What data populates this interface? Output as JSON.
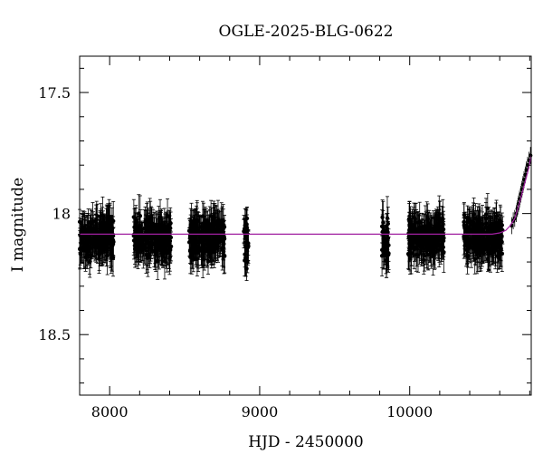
{
  "chart_data": {
    "type": "scatter",
    "title": "OGLE-2025-BLG-0622",
    "xlabel": "HJD - 2450000",
    "ylabel": "I magnitude",
    "xlim": [
      7800,
      10810
    ],
    "ylim": [
      18.75,
      17.35
    ],
    "y_axis_inverted": true,
    "x_ticks": [
      8000,
      9000,
      10000
    ],
    "x_tick_labels": [
      "8000",
      "9000",
      "10000"
    ],
    "y_ticks": [
      17.5,
      18,
      18.5
    ],
    "y_tick_labels": [
      "17.5",
      "18",
      "18.5"
    ],
    "grid": false,
    "legend": null,
    "observing_seasons": [
      {
        "x_start": 7800,
        "x_end": 8030,
        "mean_mag": 18.1,
        "scatter": 0.04,
        "error": 0.065
      },
      {
        "x_start": 8160,
        "x_end": 8410,
        "mean_mag": 18.1,
        "scatter": 0.04,
        "error": 0.065
      },
      {
        "x_start": 8530,
        "x_end": 8770,
        "mean_mag": 18.1,
        "scatter": 0.04,
        "error": 0.065
      },
      {
        "x_start": 8895,
        "x_end": 8925,
        "mean_mag": 18.11,
        "scatter": 0.04,
        "error": 0.06
      },
      {
        "x_start": 9815,
        "x_end": 9860,
        "mean_mag": 18.12,
        "scatter": 0.05,
        "error": 0.07
      },
      {
        "x_start": 9990,
        "x_end": 10230,
        "mean_mag": 18.1,
        "scatter": 0.04,
        "error": 0.065
      },
      {
        "x_start": 10360,
        "x_end": 10620,
        "mean_mag": 18.1,
        "scatter": 0.04,
        "error": 0.065
      }
    ],
    "rising_points": [
      {
        "x": 10680,
        "y": 18.05
      },
      {
        "x": 10690,
        "y": 18.03
      },
      {
        "x": 10700,
        "y": 18.02
      },
      {
        "x": 10710,
        "y": 18.0
      },
      {
        "x": 10718,
        "y": 17.98
      },
      {
        "x": 10725,
        "y": 17.96
      },
      {
        "x": 10732,
        "y": 17.94
      },
      {
        "x": 10740,
        "y": 17.92
      },
      {
        "x": 10748,
        "y": 17.9
      },
      {
        "x": 10755,
        "y": 17.88
      },
      {
        "x": 10762,
        "y": 17.86
      },
      {
        "x": 10770,
        "y": 17.84
      },
      {
        "x": 10778,
        "y": 17.82
      },
      {
        "x": 10786,
        "y": 17.8
      },
      {
        "x": 10795,
        "y": 17.78
      },
      {
        "x": 10805,
        "y": 17.76
      }
    ],
    "model_curve": {
      "color": "#a020a0",
      "baseline_mag": 18.085,
      "points": [
        {
          "x": 7800,
          "y": 18.085
        },
        {
          "x": 10550,
          "y": 18.085
        },
        {
          "x": 10600,
          "y": 18.08
        },
        {
          "x": 10640,
          "y": 18.07
        },
        {
          "x": 10670,
          "y": 18.05
        },
        {
          "x": 10700,
          "y": 18.02
        },
        {
          "x": 10730,
          "y": 17.96
        },
        {
          "x": 10760,
          "y": 17.89
        },
        {
          "x": 10790,
          "y": 17.82
        },
        {
          "x": 10810,
          "y": 17.76
        }
      ]
    },
    "point_color": "#000000"
  }
}
